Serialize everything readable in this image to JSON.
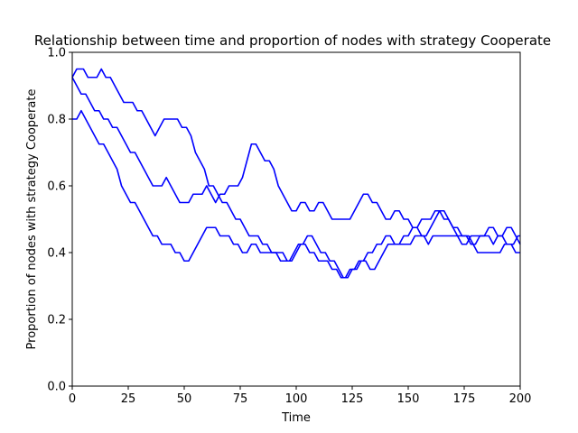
{
  "chart_data": {
    "type": "line",
    "title": "Relationship between time and proportion of nodes with strategy Cooperate",
    "xlabel": "Time",
    "ylabel": "Proportion of nodes with strategy Cooperate",
    "xlim": [
      0,
      200
    ],
    "ylim": [
      0.0,
      1.0
    ],
    "xticks": [
      0,
      25,
      50,
      75,
      100,
      125,
      150,
      175,
      200
    ],
    "yticks": [
      0.0,
      0.2,
      0.4,
      0.6,
      0.8,
      1.0
    ],
    "xtick_labels": [
      "0",
      "25",
      "50",
      "75",
      "100",
      "125",
      "150",
      "175",
      "200"
    ],
    "ytick_labels": [
      "0.0",
      "0.2",
      "0.4",
      "0.6",
      "0.8",
      "1.0"
    ],
    "grid": false,
    "series_color": "#0000ff",
    "series": [
      {
        "x": [
          0,
          2,
          5,
          7,
          9,
          11,
          13,
          15,
          17,
          19,
          21,
          23,
          25,
          27,
          29,
          31,
          33,
          35,
          37,
          39,
          41,
          43,
          45,
          47,
          49,
          51,
          53,
          55,
          57,
          59,
          61,
          63,
          65,
          67,
          69,
          71,
          73,
          75,
          77,
          79,
          81,
          83,
          85,
          87,
          89,
          91,
          93,
          95,
          97,
          99,
          101,
          103,
          105,
          107,
          109,
          111,
          113,
          115,
          117,
          119,
          121,
          123,
          125,
          127,
          129,
          131,
          133,
          135,
          137,
          139,
          141,
          143,
          145,
          147,
          149,
          151,
          153,
          155,
          157,
          159,
          161,
          163,
          165,
          167,
          169,
          171,
          173,
          175,
          177,
          179,
          181,
          183,
          185,
          187,
          189,
          191,
          193,
          195,
          197,
          199,
          200
        ],
        "y": [
          0.925,
          0.95,
          0.95,
          0.925,
          0.925,
          0.925,
          0.95,
          0.925,
          0.925,
          0.9,
          0.875,
          0.85,
          0.85,
          0.85,
          0.825,
          0.825,
          0.8,
          0.775,
          0.75,
          0.775,
          0.8,
          0.8,
          0.8,
          0.8,
          0.775,
          0.775,
          0.75,
          0.7,
          0.675,
          0.65,
          0.6,
          0.6,
          0.575,
          0.55,
          0.55,
          0.525,
          0.5,
          0.5,
          0.475,
          0.45,
          0.45,
          0.45,
          0.425,
          0.425,
          0.4,
          0.4,
          0.375,
          0.375,
          0.375,
          0.4,
          0.425,
          0.425,
          0.45,
          0.45,
          0.425,
          0.4,
          0.4,
          0.375,
          0.375,
          0.35,
          0.325,
          0.325,
          0.35,
          0.35,
          0.375,
          0.375,
          0.35,
          0.35,
          0.375,
          0.4,
          0.425,
          0.425,
          0.425,
          0.425,
          0.425,
          0.425,
          0.45,
          0.45,
          0.45,
          0.425,
          0.45,
          0.45,
          0.45,
          0.45,
          0.45,
          0.45,
          0.45,
          0.45,
          0.45,
          0.425,
          0.4,
          0.4,
          0.4,
          0.4,
          0.4,
          0.4,
          0.425,
          0.425,
          0.425,
          0.45,
          0.45
        ]
      },
      {
        "x": [
          0,
          2,
          4,
          6,
          8,
          10,
          12,
          14,
          16,
          18,
          20,
          22,
          24,
          26,
          28,
          30,
          32,
          34,
          36,
          38,
          40,
          42,
          44,
          46,
          48,
          50,
          52,
          54,
          56,
          58,
          60,
          62,
          64,
          66,
          68,
          70,
          72,
          74,
          76,
          78,
          80,
          82,
          84,
          86,
          88,
          90,
          92,
          94,
          96,
          98,
          100,
          102,
          104,
          106,
          108,
          110,
          112,
          114,
          116,
          118,
          120,
          122,
          124,
          126,
          128,
          130,
          132,
          134,
          136,
          138,
          140,
          142,
          144,
          146,
          148,
          150,
          152,
          154,
          156,
          158,
          160,
          162,
          164,
          166,
          168,
          170,
          172,
          174,
          176,
          178,
          180,
          182,
          184,
          186,
          188,
          190,
          192,
          194,
          196,
          198,
          200
        ],
        "y": [
          0.925,
          0.9,
          0.875,
          0.875,
          0.85,
          0.825,
          0.825,
          0.8,
          0.8,
          0.775,
          0.775,
          0.75,
          0.725,
          0.7,
          0.7,
          0.675,
          0.65,
          0.625,
          0.6,
          0.6,
          0.6,
          0.625,
          0.6,
          0.575,
          0.55,
          0.55,
          0.55,
          0.575,
          0.575,
          0.575,
          0.6,
          0.575,
          0.55,
          0.575,
          0.575,
          0.6,
          0.6,
          0.6,
          0.625,
          0.675,
          0.725,
          0.725,
          0.7,
          0.675,
          0.675,
          0.65,
          0.6,
          0.575,
          0.55,
          0.525,
          0.525,
          0.55,
          0.55,
          0.525,
          0.525,
          0.55,
          0.55,
          0.525,
          0.5,
          0.5,
          0.5,
          0.5,
          0.5,
          0.525,
          0.55,
          0.575,
          0.575,
          0.55,
          0.55,
          0.525,
          0.5,
          0.5,
          0.525,
          0.525,
          0.5,
          0.5,
          0.475,
          0.475,
          0.45,
          0.45,
          0.475,
          0.5,
          0.525,
          0.525,
          0.5,
          0.475,
          0.45,
          0.425,
          0.425,
          0.45,
          0.45,
          0.45,
          0.45,
          0.45,
          0.425,
          0.45,
          0.45,
          0.475,
          0.475,
          0.45,
          0.425
        ]
      },
      {
        "x": [
          0,
          2,
          4,
          6,
          8,
          10,
          12,
          14,
          16,
          18,
          20,
          22,
          24,
          26,
          28,
          30,
          32,
          34,
          36,
          38,
          40,
          42,
          44,
          46,
          48,
          50,
          52,
          54,
          56,
          58,
          60,
          62,
          64,
          66,
          68,
          70,
          72,
          74,
          76,
          78,
          80,
          82,
          84,
          86,
          88,
          90,
          92,
          94,
          96,
          98,
          100,
          102,
          104,
          106,
          108,
          110,
          112,
          114,
          116,
          118,
          120,
          122,
          124,
          126,
          128,
          130,
          132,
          134,
          136,
          138,
          140,
          142,
          144,
          146,
          148,
          150,
          152,
          154,
          156,
          158,
          160,
          162,
          164,
          166,
          168,
          170,
          172,
          174,
          176,
          178,
          180,
          182,
          184,
          186,
          188,
          190,
          192,
          194,
          196,
          198,
          200
        ],
        "y": [
          0.8,
          0.8,
          0.825,
          0.8,
          0.775,
          0.75,
          0.725,
          0.725,
          0.7,
          0.675,
          0.65,
          0.6,
          0.575,
          0.55,
          0.55,
          0.525,
          0.5,
          0.475,
          0.45,
          0.45,
          0.425,
          0.425,
          0.425,
          0.4,
          0.4,
          0.375,
          0.375,
          0.4,
          0.425,
          0.45,
          0.475,
          0.475,
          0.475,
          0.45,
          0.45,
          0.45,
          0.425,
          0.425,
          0.4,
          0.4,
          0.425,
          0.425,
          0.4,
          0.4,
          0.4,
          0.4,
          0.4,
          0.4,
          0.375,
          0.375,
          0.4,
          0.425,
          0.425,
          0.4,
          0.4,
          0.375,
          0.375,
          0.375,
          0.35,
          0.35,
          0.325,
          0.325,
          0.35,
          0.35,
          0.375,
          0.375,
          0.4,
          0.4,
          0.425,
          0.425,
          0.45,
          0.45,
          0.425,
          0.425,
          0.45,
          0.45,
          0.475,
          0.475,
          0.5,
          0.5,
          0.5,
          0.525,
          0.525,
          0.5,
          0.5,
          0.475,
          0.475,
          0.45,
          0.45,
          0.425,
          0.425,
          0.45,
          0.45,
          0.475,
          0.475,
          0.45,
          0.45,
          0.425,
          0.425,
          0.4,
          0.4
        ]
      }
    ]
  }
}
